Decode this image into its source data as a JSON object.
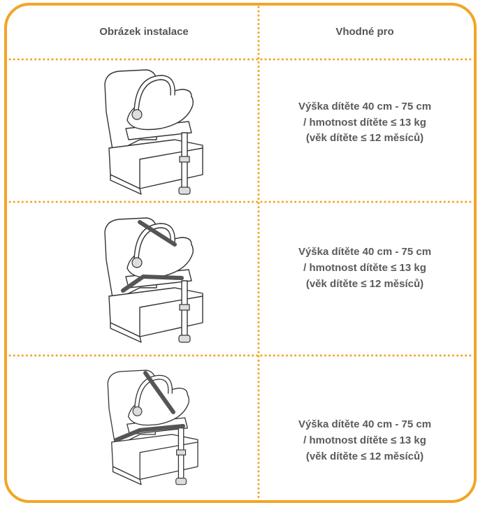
{
  "header": {
    "col1": "Obrázek instalace",
    "col2": "Vhodné pro"
  },
  "rows": [
    {
      "lines": [
        "Výška dítěte 40 cm - 75 cm",
        "/ hmotnost dítěte ≤ 13 kg",
        "(věk dítěte ≤ 12 měsíců)"
      ]
    },
    {
      "lines": [
        "Výška dítěte 40 cm - 75 cm",
        "/ hmotnost dítěte ≤ 13 kg",
        "(věk dítěte ≤ 12 měsíců)"
      ]
    },
    {
      "lines": [
        "Výška dítěte 40 cm - 75 cm",
        "/ hmotnost dítěte ≤ 13 kg",
        "(věk dítěte ≤ 12 měsíců)"
      ]
    }
  ]
}
